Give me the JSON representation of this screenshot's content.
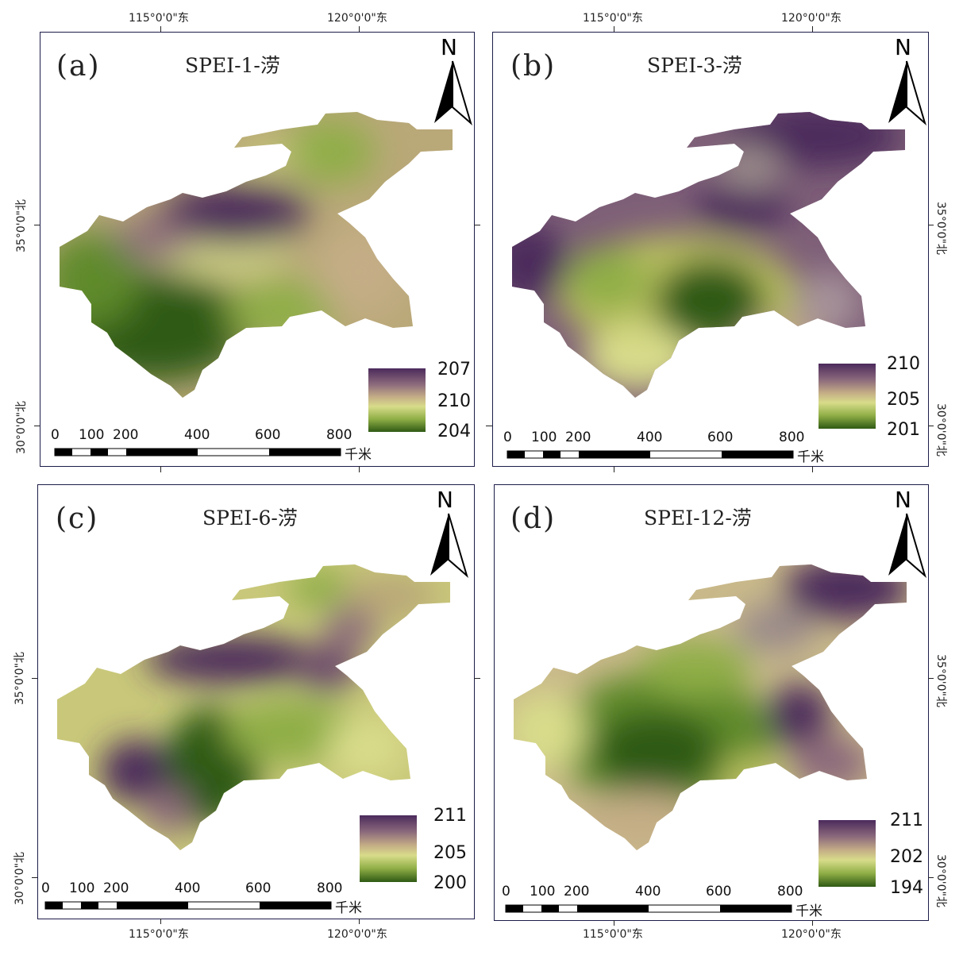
{
  "axis_labels": {
    "lon_115": "115°0'0\"东",
    "lon_120": "120°0'0\"东",
    "lat_35": "35°0'0\"北",
    "lat_30": "30°0'0\"北"
  },
  "scale_bar": {
    "ticks": [
      "0",
      "100",
      "200",
      "400",
      "600",
      "800"
    ],
    "unit": "千米"
  },
  "north_arrow": "N",
  "panels": [
    {
      "label": "(a)",
      "title": "SPEI-1-涝",
      "legend": {
        "top": "207",
        "mid": "210",
        "bottom": "204"
      }
    },
    {
      "label": "(b)",
      "title": "SPEI-3-涝",
      "legend": {
        "top": "210",
        "mid": "205",
        "bottom": "201"
      }
    },
    {
      "label": "(c)",
      "title": "SPEI-6-涝",
      "legend": {
        "top": "211",
        "mid": "205",
        "bottom": "200"
      }
    },
    {
      "label": "(d)",
      "title": "SPEI-12-涝",
      "legend": {
        "top": "211",
        "mid": "202",
        "bottom": "194"
      }
    }
  ],
  "colors": {
    "purple": "#4b2a5c",
    "mauve": "#8c6a7c",
    "tan": "#b9a878",
    "yellow": "#d8dc8a",
    "lightgreen": "#a9bb5a",
    "green": "#5f8a2a",
    "darkgreen": "#2f5a14",
    "frame": "#1d1d4a"
  }
}
